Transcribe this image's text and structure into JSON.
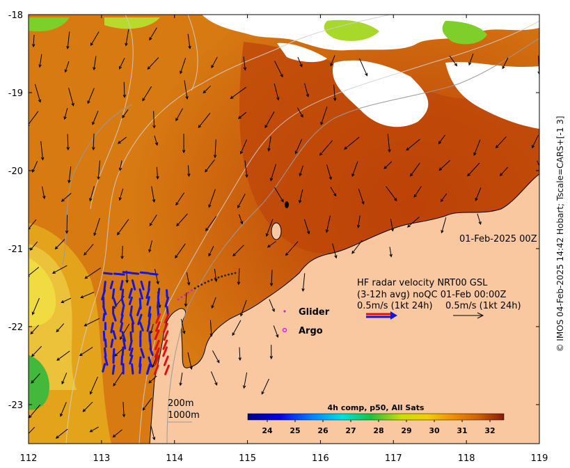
{
  "map": {
    "x_ticks": [
      "112",
      "113",
      "114",
      "115",
      "116",
      "117",
      "118",
      "119"
    ],
    "y_ticks": [
      "-18",
      "-19",
      "-20",
      "-21",
      "-22",
      "-23"
    ],
    "lon_range": [
      112,
      119
    ],
    "lat_range": [
      -23.5,
      -18
    ],
    "timestamp": "01-Feb-2025 00Z",
    "radar_title": "HF radar velocity  NRT00 GSL",
    "radar_line2": "(3-12h avg) noQC 01-Feb 00:00Z",
    "scale_left": "0.5m/s (1kt 24h)",
    "scale_right": "0.5m/s (1kt 24h)",
    "legend_glider": "Glider",
    "legend_argo": "Argo",
    "depth_200": "200m",
    "depth_1000": "1000m",
    "colorbar_title": "4h comp, p50, All Sats",
    "colorbar_ticks": [
      "24",
      "25",
      "26",
      "27",
      "28",
      "29",
      "30",
      "31",
      "32"
    ],
    "side_note": "© IMOS 04-Feb-2025 14:42 Hobart; Tscale=CARS+[-1 3]",
    "colors": {
      "land": "#f9c8a0",
      "coastline": "#000000",
      "radar_blue": "#1616d8",
      "radar_red": "#e01010",
      "glider": "#d020d0",
      "argo": "#e020e0"
    }
  }
}
